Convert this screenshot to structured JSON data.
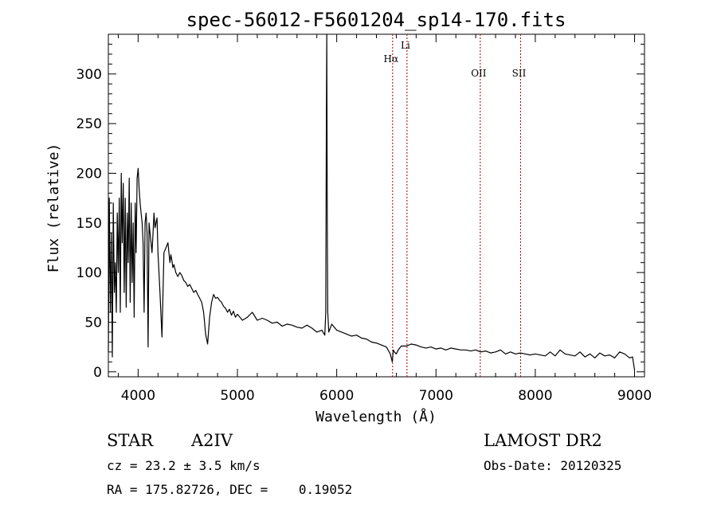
{
  "chart_data": {
    "type": "line",
    "title": "spec-56012-F5601204_sp14-170.fits",
    "xlabel": "Wavelength (Å)",
    "ylabel": "Flux (relative)",
    "xlim": [
      3700,
      9100
    ],
    "ylim": [
      -5,
      340
    ],
    "x_ticks": [
      4000,
      5000,
      6000,
      7000,
      8000,
      9000
    ],
    "y_ticks": [
      0,
      50,
      100,
      150,
      200,
      250,
      300
    ],
    "grid": false,
    "line_color": "#000000",
    "marker_color": "#aa0000",
    "series": [
      {
        "x": [
          3700,
          3710,
          3720,
          3730,
          3740,
          3750,
          3760,
          3770,
          3780,
          3790,
          3800,
          3810,
          3820,
          3830,
          3840,
          3850,
          3860,
          3870,
          3880,
          3890,
          3900,
          3910,
          3920,
          3930,
          3940,
          3950,
          3960,
          3970,
          3980,
          3990,
          4000,
          4010,
          4020,
          4030,
          4040,
          4050,
          4060,
          4070,
          4080,
          4090,
          4100,
          4110,
          4120,
          4130,
          4140,
          4150,
          4160,
          4170,
          4180,
          4190,
          4200,
          4220,
          4240,
          4260,
          4280,
          4300,
          4320,
          4330,
          4340,
          4350,
          4360,
          4380,
          4400,
          4420,
          4440,
          4460,
          4480,
          4500,
          4520,
          4540,
          4560,
          4580,
          4600,
          4620,
          4640,
          4660,
          4680,
          4700,
          4720,
          4740,
          4760,
          4780,
          4800,
          4820,
          4840,
          4850,
          4860,
          4870,
          4880,
          4900,
          4920,
          4940,
          4960,
          4980,
          5000,
          5050,
          5100,
          5150,
          5200,
          5250,
          5300,
          5350,
          5400,
          5450,
          5500,
          5550,
          5600,
          5650,
          5700,
          5750,
          5800,
          5850,
          5880,
          5890,
          5895,
          5900,
          5905,
          5910,
          5920,
          5950,
          6000,
          6050,
          6100,
          6150,
          6200,
          6250,
          6300,
          6350,
          6400,
          6450,
          6500,
          6540,
          6560,
          6570,
          6580,
          6600,
          6620,
          6650,
          6700,
          6750,
          6800,
          6850,
          6900,
          6950,
          7000,
          7050,
          7100,
          7150,
          7200,
          7250,
          7300,
          7350,
          7400,
          7450,
          7500,
          7550,
          7600,
          7650,
          7700,
          7750,
          7800,
          7850,
          7900,
          7950,
          8000,
          8050,
          8100,
          8150,
          8200,
          8250,
          8300,
          8350,
          8400,
          8450,
          8500,
          8550,
          8600,
          8650,
          8700,
          8750,
          8800,
          8850,
          8900,
          8950,
          8980,
          9000
        ],
        "y": [
          20,
          175,
          60,
          140,
          15,
          170,
          80,
          110,
          60,
          160,
          100,
          175,
          60,
          200,
          130,
          190,
          80,
          175,
          65,
          160,
          110,
          195,
          70,
          170,
          90,
          150,
          55,
          170,
          120,
          195,
          205,
          185,
          170,
          160,
          150,
          130,
          60,
          150,
          160,
          140,
          25,
          150,
          140,
          130,
          120,
          140,
          160,
          145,
          150,
          155,
          120,
          80,
          35,
          120,
          125,
          130,
          110,
          118,
          112,
          105,
          108,
          100,
          96,
          100,
          97,
          92,
          90,
          86,
          88,
          84,
          80,
          82,
          78,
          74,
          70,
          60,
          38,
          28,
          55,
          70,
          78,
          74,
          75,
          72,
          70,
          68,
          66,
          65,
          64,
          60,
          63,
          57,
          61,
          55,
          58,
          52,
          55,
          60,
          52,
          54,
          52,
          49,
          50,
          46,
          48,
          47,
          45,
          44,
          47,
          44,
          40,
          42,
          37,
          60,
          240,
          348,
          150,
          60,
          40,
          48,
          42,
          40,
          38,
          36,
          37,
          34,
          33,
          30,
          29,
          27,
          25,
          18,
          10,
          22,
          20,
          18,
          22,
          26,
          26,
          28,
          27,
          25,
          24,
          25,
          23,
          24,
          22,
          24,
          23,
          22,
          22,
          21,
          22,
          20,
          21,
          19,
          20,
          22,
          18,
          20,
          18,
          19,
          18,
          17,
          18,
          17,
          16,
          20,
          16,
          22,
          18,
          17,
          16,
          20,
          15,
          18,
          14,
          19,
          16,
          17,
          14,
          20,
          18,
          14,
          15,
          2
        ]
      }
    ],
    "line_markers": [
      {
        "label": "Hα",
        "x": 6563
      },
      {
        "label": "Li",
        "x": 6708
      },
      {
        "label": "OII",
        "x": 7446
      },
      {
        "label": "SII",
        "x": 7852
      }
    ]
  },
  "info": {
    "object_class": "STAR",
    "subclass": "A2IV",
    "redshift": "cz = 23.2 ± 3.5 km/s",
    "coords": "RA = 175.82726, DEC =    0.19052",
    "survey": "LAMOST DR2",
    "obs_date": "Obs-Date: 20120325"
  }
}
